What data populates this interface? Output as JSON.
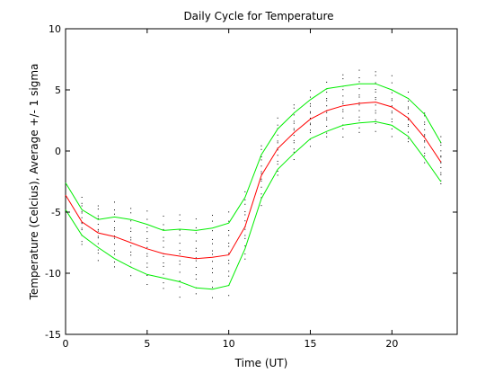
{
  "chart_data": {
    "type": "line",
    "title": "Daily Cycle for Temperature",
    "xlabel": "Time (UT)",
    "ylabel": "Temperature (Celcius), Average +/- 1 sigma",
    "xlim": [
      0,
      24
    ],
    "ylim": [
      -15,
      10
    ],
    "xticks": [
      0,
      5,
      10,
      15,
      20
    ],
    "yticks": [
      -15,
      -10,
      -5,
      0,
      5,
      10
    ],
    "x": [
      0,
      1,
      2,
      3,
      4,
      5,
      6,
      7,
      8,
      9,
      10,
      11,
      12,
      13,
      14,
      15,
      16,
      17,
      18,
      19,
      20,
      21,
      22,
      23
    ],
    "series": [
      {
        "color": "#ff0000",
        "values": [
          -3.6,
          -5.8,
          -6.7,
          -7.0,
          -7.5,
          -8.0,
          -8.4,
          -8.6,
          -8.8,
          -8.7,
          -8.5,
          -6.2,
          -2.0,
          0.2,
          1.5,
          2.6,
          3.3,
          3.7,
          3.9,
          4.0,
          3.6,
          2.7,
          1.1,
          -0.9
        ]
      },
      {
        "color": "#00ee00",
        "values": [
          -2.6,
          -4.8,
          -5.6,
          -5.4,
          -5.6,
          -6.0,
          -6.5,
          -6.4,
          -6.5,
          -6.3,
          -5.9,
          -3.8,
          -0.3,
          1.8,
          3.1,
          4.2,
          5.1,
          5.3,
          5.5,
          5.5,
          5.0,
          4.3,
          3.0,
          0.7
        ]
      },
      {
        "color": "#00ee00",
        "values": [
          -4.8,
          -6.9,
          -7.9,
          -8.8,
          -9.5,
          -10.1,
          -10.4,
          -10.7,
          -11.2,
          -11.3,
          -11.0,
          -8.0,
          -3.9,
          -1.5,
          -0.2,
          1.0,
          1.6,
          2.1,
          2.3,
          2.4,
          2.1,
          1.2,
          -0.6,
          -2.5
        ]
      }
    ],
    "scatter_color": "#000000",
    "scatter_spread": [
      1.8,
      1.9,
      2.2,
      2.6,
      2.7,
      2.8,
      2.9,
      3.3,
      3.0,
      3.3,
      3.2,
      2.7,
      2.4,
      2.3,
      2.2,
      2.1,
      2.2,
      2.5,
      2.5,
      2.4,
      2.3,
      2.0,
      2.0,
      1.9
    ]
  }
}
